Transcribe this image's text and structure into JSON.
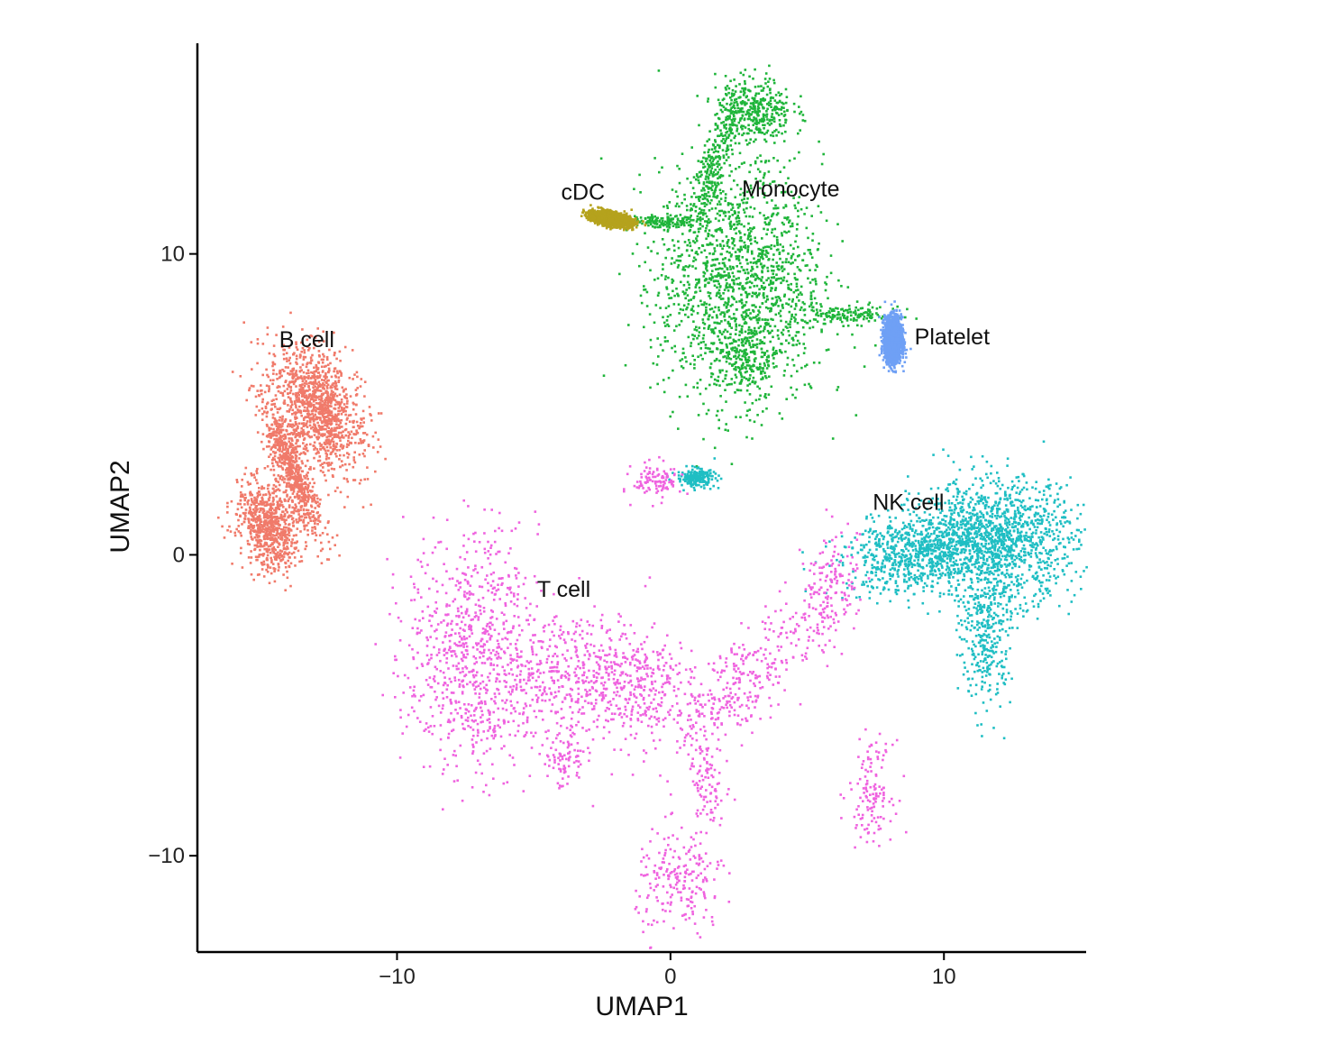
{
  "chart_data": {
    "type": "scatter",
    "xlabel": "UMAP1",
    "ylabel": "UMAP2",
    "xlim": [
      -17.3,
      15.2
    ],
    "ylim": [
      -13.2,
      17.0
    ],
    "x_ticks": [
      {
        "value": -10,
        "label": "−10"
      },
      {
        "value": 0,
        "label": "0"
      },
      {
        "value": 10,
        "label": "10"
      }
    ],
    "y_ticks": [
      {
        "value": -10,
        "label": "−10"
      },
      {
        "value": 0,
        "label": "0"
      },
      {
        "value": 10,
        "label": "10"
      }
    ],
    "grid": false,
    "legend": "none",
    "series": [
      {
        "name": "B cell",
        "color": "#f07a6a",
        "label_position": [
          -13.3,
          6.9
        ],
        "clusters": [
          {
            "center": [
              -12.9,
              4.9
            ],
            "spread": [
              0.7,
              1.1
            ],
            "rotation": 30,
            "density": 0.45
          },
          {
            "center": [
              -14.7,
              1.0
            ],
            "spread": [
              0.55,
              0.75
            ],
            "rotation": 20,
            "density": 0.3
          },
          {
            "center": [
              -13.9,
              2.9
            ],
            "spread": [
              0.25,
              1.2
            ],
            "rotation": 25,
            "density": 0.25
          }
        ]
      },
      {
        "name": "Monocyte",
        "color": "#1fb53a",
        "label_position": [
          4.4,
          11.9
        ],
        "clusters": [
          {
            "center": [
              2.5,
              9.0
            ],
            "spread": [
              1.5,
              2.0
            ],
            "rotation": 0,
            "density": 0.6
          },
          {
            "center": [
              3.0,
              14.8
            ],
            "spread": [
              0.7,
              0.55
            ],
            "rotation": 0,
            "density": 0.15
          },
          {
            "center": [
              1.4,
              12.6
            ],
            "spread": [
              0.3,
              1.1
            ],
            "rotation": -20,
            "density": 0.1
          },
          {
            "center": [
              6.5,
              8.0
            ],
            "spread": [
              0.9,
              0.15
            ],
            "rotation": 0,
            "density": 0.05
          },
          {
            "center": [
              -0.3,
              11.1
            ],
            "spread": [
              0.6,
              0.1
            ],
            "rotation": 0,
            "density": 0.05
          },
          {
            "center": [
              2.6,
              6.3
            ],
            "spread": [
              0.6,
              0.6
            ],
            "rotation": 0,
            "density": 0.05
          }
        ]
      },
      {
        "name": "cDC",
        "color": "#b5a21d",
        "label_position": [
          -3.2,
          11.8
        ],
        "clusters": [
          {
            "center": [
              -2.2,
              11.2
            ],
            "spread": [
              0.35,
              0.1
            ],
            "rotation": -10,
            "density": 1.0
          }
        ]
      },
      {
        "name": "Platelet",
        "color": "#6fa0f5",
        "label_position": [
          10.3,
          7.0
        ],
        "clusters": [
          {
            "center": [
              8.1,
              7.2
            ],
            "spread": [
              0.15,
              0.35
            ],
            "rotation": 0,
            "density": 1.0
          }
        ]
      },
      {
        "name": "NK cell",
        "color": "#1fbec3",
        "label_position": [
          8.7,
          1.5
        ],
        "clusters": [
          {
            "center": [
              11.8,
              0.5
            ],
            "spread": [
              1.5,
              1.0
            ],
            "rotation": 0,
            "density": 0.55
          },
          {
            "center": [
              8.8,
              0.1
            ],
            "spread": [
              1.3,
              0.6
            ],
            "rotation": 10,
            "density": 0.25
          },
          {
            "center": [
              11.5,
              -2.7
            ],
            "spread": [
              0.45,
              1.2
            ],
            "rotation": 0,
            "density": 0.12
          },
          {
            "center": [
              0.9,
              2.6
            ],
            "spread": [
              0.35,
              0.15
            ],
            "rotation": 0,
            "density": 0.08
          }
        ]
      },
      {
        "name": "T cell",
        "color": "#ef63df",
        "label_position": [
          -3.9,
          -1.4
        ],
        "clusters": [
          {
            "center": [
              -7.3,
              -3.3
            ],
            "spread": [
              1.2,
              2.0
            ],
            "rotation": 0,
            "density": 0.3
          },
          {
            "center": [
              -3.5,
              -4.0
            ],
            "spread": [
              1.6,
              1.1
            ],
            "rotation": 0,
            "density": 0.18
          },
          {
            "center": [
              -1.2,
              -4.3
            ],
            "spread": [
              1.1,
              1.0
            ],
            "rotation": 0,
            "density": 0.1
          },
          {
            "center": [
              2.8,
              -4.0
            ],
            "spread": [
              0.6,
              1.5
            ],
            "rotation": -45,
            "density": 0.1
          },
          {
            "center": [
              5.7,
              -1.3
            ],
            "spread": [
              0.5,
              1.2
            ],
            "rotation": -20,
            "density": 0.07
          },
          {
            "center": [
              0.3,
              -10.9
            ],
            "spread": [
              0.8,
              0.9
            ],
            "rotation": 0,
            "density": 0.08
          },
          {
            "center": [
              7.3,
              -7.8
            ],
            "spread": [
              0.4,
              0.8
            ],
            "rotation": 0,
            "density": 0.05
          },
          {
            "center": [
              1.2,
              -7.3
            ],
            "spread": [
              0.35,
              1.3
            ],
            "rotation": 10,
            "density": 0.05
          },
          {
            "center": [
              -3.9,
              -6.8
            ],
            "spread": [
              0.4,
              0.5
            ],
            "rotation": 0,
            "density": 0.03
          },
          {
            "center": [
              -0.5,
              2.5
            ],
            "spread": [
              0.45,
              0.3
            ],
            "rotation": 0,
            "density": 0.04
          }
        ]
      }
    ]
  }
}
